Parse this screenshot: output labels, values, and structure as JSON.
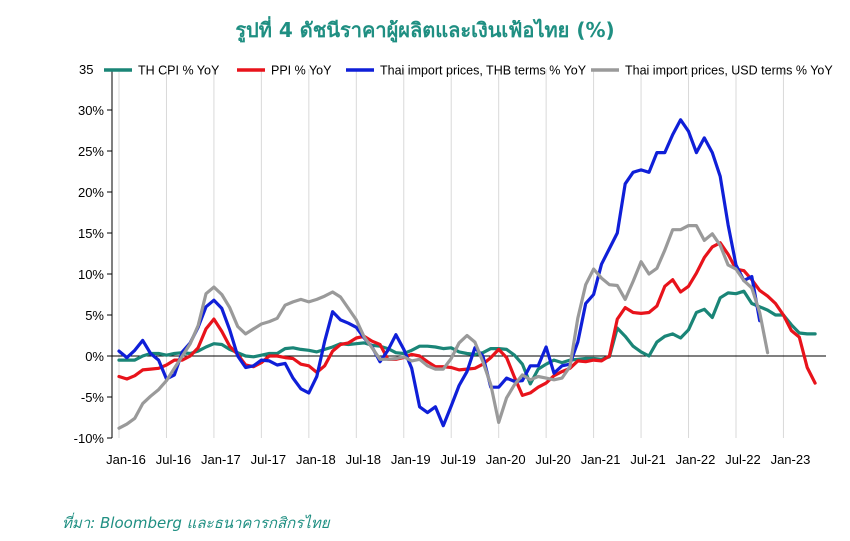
{
  "chart_data": {
    "type": "line",
    "title": "รูปที่ 4 ดัชนีราคาผู้ผลิตและเงินเฟ้อไทย (%)",
    "source": "ที่มา: Bloomberg และธนาคารกสิกรไทย",
    "ylim": [
      -10,
      35
    ],
    "yticks": [
      -10,
      -5,
      0,
      5,
      10,
      15,
      20,
      25,
      30
    ],
    "ytick_labels": [
      "-10%",
      "-5%",
      "0%",
      "5%",
      "10%",
      "15%",
      "20%",
      "25%",
      "30%"
    ],
    "top_tick_label": "35",
    "xlim": [
      "Jan-16",
      "May-23"
    ],
    "xtick_labels": [
      "Jan-16",
      "Jul-16",
      "Jan-17",
      "Jul-17",
      "Jan-18",
      "Jul-18",
      "Jan-19",
      "Jul-19",
      "Jan-20",
      "Jul-20",
      "Jan-21",
      "Jul-21",
      "Jan-22",
      "Jul-22",
      "Jan-23"
    ],
    "legend_position": "top",
    "grid": "vertical",
    "series": [
      {
        "name": "TH CPI % YoY",
        "color": "#1a8577",
        "values": [
          -0.5,
          -0.5,
          -0.5,
          0,
          0.3,
          0.3,
          0.1,
          0.3,
          0.4,
          0.3,
          0.6,
          1.1,
          1.5,
          1.4,
          0.8,
          0.4,
          0,
          -0.1,
          0.1,
          0.3,
          0.3,
          0.9,
          1,
          0.8,
          0.7,
          0.5,
          0.8,
          1.1,
          1.5,
          1.4,
          1.5,
          1.6,
          1.3,
          1.2,
          0.9,
          0.4,
          0.3,
          0.7,
          1.2,
          1.2,
          1.1,
          0.9,
          1,
          0.5,
          0.3,
          0.2,
          0.4,
          0.9,
          0.9,
          0.8,
          0.1,
          -1,
          -3.4,
          -1.6,
          -1,
          -0.5,
          -0.8,
          -0.5,
          -0.4,
          -0.3,
          -0.3,
          -0.4,
          -0.1,
          3.4,
          2.4,
          1.2,
          0.5,
          0,
          1.7,
          2.4,
          2.7,
          2.2,
          3.2,
          5.3,
          5.7,
          4.7,
          7.1,
          7.7,
          7.6,
          7.9,
          6.4,
          6,
          5.6,
          5,
          5,
          3.8,
          2.8,
          2.7,
          2.7
        ]
      },
      {
        "name": "PPI % YoY",
        "color": "#e8131b",
        "values": [
          -2.5,
          -2.8,
          -2.4,
          -1.7,
          -1.6,
          -1.5,
          -1.1,
          -0.5,
          -0.5,
          0,
          1,
          3.3,
          4.5,
          3,
          1.2,
          0.2,
          -1.1,
          -1.3,
          -0.8,
          0,
          0,
          -0.2,
          -0.3,
          -1,
          -1.2,
          -2,
          -1.2,
          0.6,
          1.4,
          1.6,
          2.2,
          2.4,
          1.8,
          1.4,
          -0.4,
          -0.4,
          -0.2,
          0.2,
          0,
          -0.7,
          -1.3,
          -1.3,
          -1.4,
          -1.7,
          -1.6,
          -1.5,
          -1,
          -0.2,
          0.8,
          -0.2,
          -2.6,
          -4.8,
          -4.5,
          -3.8,
          -3.3,
          -2.4,
          -1.9,
          -1.5,
          -0.6,
          -0.7,
          -0.5,
          -0.6,
          0,
          4.5,
          5.9,
          5.3,
          5.2,
          5.3,
          6.1,
          8.5,
          9.3,
          7.8,
          8.5,
          10.1,
          12,
          13.3,
          13.8,
          12.4,
          10.6,
          10.4,
          9.3,
          8,
          7.3,
          6.4,
          5,
          3.1,
          2.3,
          -1.4,
          -3.3
        ]
      },
      {
        "name": "Thai import prices, THB terms % YoY",
        "color": "#0f1fd8",
        "values": [
          0.6,
          -0.2,
          0.7,
          1.9,
          0.3,
          -0.5,
          -2.8,
          -2.3,
          0.5,
          1.6,
          3.5,
          6,
          6.8,
          5.8,
          3.2,
          0,
          -1.4,
          -1.2,
          -0.5,
          -0.6,
          -1.1,
          -0.9,
          -2.7,
          -4,
          -4.5,
          -2.5,
          1.8,
          5.4,
          4.4,
          4,
          3.5,
          2.2,
          1.1,
          -0.7,
          0.7,
          2.6,
          0.8,
          -1.5,
          -6.2,
          -6.9,
          -6.2,
          -8.5,
          -6.1,
          -3.6,
          -1.9,
          1,
          0,
          -3.8,
          -3.8,
          -2.7,
          -3.1,
          -3,
          -1.2,
          -1.2,
          1.1,
          -2.1,
          -1.2,
          -1,
          1.7,
          6.4,
          7.5,
          11.2,
          13.1,
          15,
          21,
          22.4,
          22.7,
          22.4,
          24.8,
          24.8,
          27,
          28.8,
          27.4,
          24.8,
          26.6,
          24.8,
          21.9,
          16,
          11.1,
          9.2,
          9.7,
          4.3
        ]
      },
      {
        "name": "Thai import prices, USD terms % YoY",
        "color": "#9a9a9a",
        "values": [
          -8.8,
          -8.3,
          -7.6,
          -5.8,
          -4.9,
          -4.1,
          -3,
          -1.5,
          0,
          1.5,
          3.7,
          7.6,
          8.4,
          7.5,
          5.9,
          3.6,
          2.7,
          3.3,
          3.9,
          4.2,
          4.6,
          6.2,
          6.6,
          6.9,
          6.6,
          6.9,
          7.3,
          7.8,
          7.2,
          5.8,
          4.4,
          2.3,
          1,
          -0.4,
          -0.4,
          -0.3,
          -0.1,
          -0.6,
          -0.4,
          -1.2,
          -1.6,
          -1.6,
          -0.3,
          1.6,
          2.5,
          1.7,
          -0.7,
          -3.5,
          -8.1,
          -5.1,
          -3.5,
          -2.3,
          -2.9,
          -2.5,
          -2.7,
          -2.9,
          -2.7,
          -1.3,
          4.6,
          8.7,
          10.6,
          9.5,
          8.7,
          8.6,
          6.9,
          9.1,
          11.5,
          10,
          10.7,
          12.9,
          15.4,
          15.4,
          15.9,
          15.9,
          14.1,
          14.9,
          13.5,
          11.1,
          10.6,
          9.2,
          8.3,
          5.3,
          0.4
        ]
      }
    ]
  }
}
